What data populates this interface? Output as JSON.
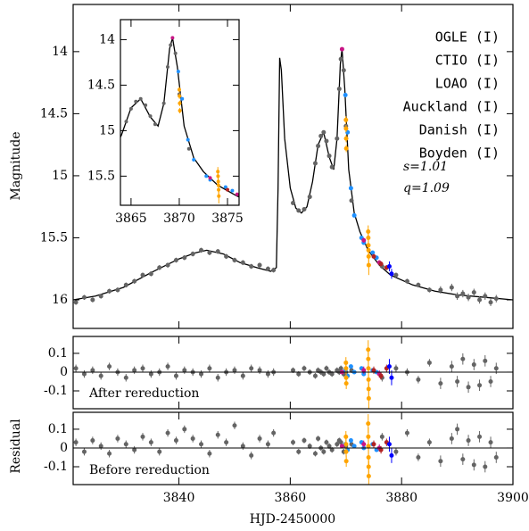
{
  "chart_data": [
    {
      "type": "scatter",
      "ylabel": "Magnitude",
      "xlim": [
        3821,
        3900
      ],
      "ylim": [
        13.62,
        16.23
      ],
      "y_inverted": true,
      "xticks": [
        3840,
        3860,
        3880,
        3900
      ],
      "yticks": [
        14,
        14.5,
        15,
        15.5,
        16
      ],
      "annotations": [
        "s=1.01",
        "q=1.09"
      ],
      "model": {
        "color": "#000000",
        "x": [
          3821,
          3825,
          3830,
          3835,
          3840,
          3843,
          3845,
          3848,
          3851,
          3854,
          3856.5,
          3857.5,
          3857.8,
          3858.1,
          3858.4,
          3859,
          3860,
          3861,
          3862,
          3863,
          3864,
          3865,
          3866,
          3867,
          3867.8,
          3868.4,
          3869,
          3869.3,
          3869.8,
          3870.5,
          3871.5,
          3872.5,
          3874,
          3876,
          3878,
          3882,
          3886,
          3890,
          3895,
          3900
        ],
        "values": [
          16.0,
          15.97,
          15.9,
          15.78,
          15.67,
          15.62,
          15.6,
          15.63,
          15.7,
          15.74,
          15.77,
          15.74,
          15.1,
          14.05,
          14.15,
          14.7,
          15.1,
          15.26,
          15.3,
          15.25,
          15.05,
          14.75,
          14.65,
          14.85,
          14.95,
          14.7,
          14.1,
          13.98,
          14.3,
          14.95,
          15.3,
          15.45,
          15.6,
          15.72,
          15.8,
          15.88,
          15.93,
          15.96,
          15.98,
          16.0
        ]
      },
      "series": [
        {
          "name": "OGLE (I)",
          "color": "#646464",
          "x": [
            3821.5,
            3823,
            3824.5,
            3826,
            3827.5,
            3829,
            3830.5,
            3832,
            3833.5,
            3835,
            3836.5,
            3838,
            3839.5,
            3841,
            3842.5,
            3844,
            3845.5,
            3847,
            3848.5,
            3850,
            3851.5,
            3853,
            3854.5,
            3856,
            3857,
            3860.5,
            3861.5,
            3862.5,
            3863.5,
            3864.5,
            3865,
            3865.5,
            3866,
            3866.5,
            3867,
            3867.5,
            3868.4,
            3868.8,
            3869.1,
            3869.6,
            3870,
            3871,
            3876.5,
            3879,
            3881,
            3883,
            3885,
            3887,
            3889,
            3890,
            3891,
            3892,
            3893,
            3894,
            3895,
            3896,
            3897
          ],
          "values": [
            16.02,
            15.98,
            16.0,
            15.97,
            15.93,
            15.92,
            15.88,
            15.85,
            15.8,
            15.79,
            15.74,
            15.72,
            15.68,
            15.66,
            15.63,
            15.6,
            15.62,
            15.61,
            15.65,
            15.68,
            15.7,
            15.73,
            15.72,
            15.75,
            15.76,
            15.22,
            15.28,
            15.27,
            15.17,
            14.9,
            14.76,
            14.68,
            14.65,
            14.72,
            14.84,
            14.93,
            14.7,
            14.3,
            14.06,
            14.15,
            14.6,
            15.2,
            15.73,
            15.8,
            15.85,
            15.88,
            15.92,
            15.92,
            15.9,
            15.97,
            15.95,
            15.98,
            15.94,
            16.0,
            15.97,
            16.02,
            15.99
          ],
          "errors": [
            0.02,
            0.02,
            0.02,
            0.02,
            0.02,
            0.02,
            0.02,
            0.02,
            0.02,
            0.02,
            0.02,
            0.02,
            0.02,
            0.02,
            0.02,
            0.02,
            0.02,
            0.02,
            0.02,
            0.02,
            0.02,
            0.02,
            0.02,
            0.02,
            0.02,
            0.015,
            0.015,
            0.015,
            0.015,
            0.015,
            0.015,
            0.015,
            0.015,
            0.015,
            0.015,
            0.015,
            0.015,
            0.015,
            0.015,
            0.015,
            0.015,
            0.015,
            0.02,
            0.02,
            0.02,
            0.02,
            0.02,
            0.03,
            0.03,
            0.03,
            0.03,
            0.03,
            0.03,
            0.03,
            0.03,
            0.03,
            0.03
          ]
        },
        {
          "name": "CTIO (I)",
          "color": "#1e90ff",
          "x": [
            3869.9,
            3870.3,
            3870.9,
            3871.5,
            3872.8,
            3873.2,
            3874.8,
            3875.5
          ],
          "values": [
            14.35,
            14.65,
            15.1,
            15.32,
            15.5,
            15.54,
            15.62,
            15.66
          ],
          "errors": [
            0.01,
            0.01,
            0.01,
            0.01,
            0.01,
            0.01,
            0.01,
            0.01
          ]
        },
        {
          "name": "LOAO (I)",
          "color": "#ffa500",
          "x": [
            3870.0,
            3870.02,
            3870.04,
            3870.06,
            3874.0,
            3874.02,
            3874.04,
            3874.06,
            3874.08,
            3874.1
          ],
          "values": [
            14.55,
            14.62,
            14.7,
            14.78,
            15.45,
            15.5,
            15.56,
            15.6,
            15.65,
            15.72
          ],
          "errors": [
            0.03,
            0.03,
            0.03,
            0.03,
            0.05,
            0.05,
            0.05,
            0.06,
            0.06,
            0.08
          ]
        },
        {
          "name": "Auckland (I)",
          "color": "#c71585",
          "x": [
            3869.3,
            3873.2,
            3876
          ],
          "values": [
            13.98,
            15.52,
            15.7
          ],
          "errors": [
            0.01,
            0.02,
            0.02
          ]
        },
        {
          "name": "Danish (I)",
          "color": "#b22222",
          "x": [
            3875,
            3876.3,
            3877.3
          ],
          "values": [
            15.65,
            15.71,
            15.74
          ],
          "errors": [
            0.02,
            0.02,
            0.02
          ]
        },
        {
          "name": "Boyden (I)",
          "color": "#0000ff",
          "x": [
            3877.8,
            3878.2
          ],
          "values": [
            15.73,
            15.79
          ],
          "errors": [
            0.04,
            0.04
          ]
        }
      ]
    },
    {
      "type": "scatter",
      "xlim": [
        3863.9,
        3876.2
      ],
      "ylim": [
        13.78,
        15.82
      ],
      "y_inverted": true,
      "xticks": [
        3865,
        3870,
        3875
      ],
      "yticks": [
        14,
        14.5,
        15,
        15.5
      ]
    },
    {
      "type": "scatter",
      "label": "After rereduction",
      "ylim": [
        -0.195,
        0.19
      ],
      "yticks": [
        0.1,
        0,
        -0.1
      ],
      "series": [
        {
          "values": [
            0.02,
            -0.01,
            0.01,
            -0.02,
            0.03,
            0,
            -0.03,
            0.01,
            0.02,
            -0.01,
            0,
            0.03,
            -0.02,
            0.01,
            0,
            -0.01,
            0.02,
            -0.03,
            0,
            0.01,
            -0.02,
            0.02,
            0.01,
            -0.01,
            0,
            0.01,
            -0.01,
            0.02,
            0,
            -0.02,
            0.01,
            0,
            -0.01,
            0.02,
            0,
            -0.01,
            0.01,
            0,
            0.02,
            -0.01,
            0,
            0.01,
            -0.03,
            0.02,
            0,
            -0.04,
            0.05,
            -0.06,
            0.03,
            -0.05,
            0.07,
            -0.08,
            0.04,
            -0.07,
            0.06,
            -0.05,
            0.02
          ]
        },
        {
          "values": [
            0.01,
            -0.02,
            0.03,
            0,
            0.02,
            -0.01,
            0.01,
            0
          ]
        },
        {
          "values": [
            0.05,
            0.02,
            -0.03,
            -0.06,
            0.12,
            0.07,
            0.02,
            -0.04,
            -0.09,
            -0.14
          ]
        },
        {
          "values": [
            0,
            0.01,
            -0.01
          ]
        },
        {
          "values": [
            0.01,
            -0.02,
            0.02
          ]
        },
        {
          "values": [
            0.03,
            -0.03
          ]
        }
      ]
    },
    {
      "type": "scatter",
      "label": "Before rereduction",
      "ylabel": "Residual",
      "xlabel": "HJD-2450000",
      "ylim": [
        -0.195,
        0.19
      ],
      "yticks": [
        0.1,
        0,
        -0.1
      ],
      "xticks": [
        3840,
        3860,
        3880,
        3900
      ],
      "series": [
        {
          "values": [
            0.03,
            -0.02,
            0.04,
            0.01,
            -0.03,
            0.05,
            0.02,
            -0.01,
            0.06,
            0.03,
            -0.02,
            0.08,
            0.04,
            0.1,
            0.05,
            0.02,
            -0.03,
            0.07,
            0.03,
            0.12,
            0.01,
            -0.04,
            0.05,
            0.02,
            0.08,
            0.03,
            -0.02,
            0.04,
            0.01,
            -0.03,
            0.05,
            0,
            -0.02,
            0.03,
            0.01,
            -0.01,
            0.02,
            0.04,
            0.03,
            -0.02,
            0.01,
            0.02,
            0.06,
            -0.02,
            0.08,
            -0.05,
            0.03,
            -0.07,
            0.05,
            0.1,
            -0.06,
            0.04,
            -0.09,
            0.06,
            -0.1,
            0.03,
            -0.05
          ]
        },
        {
          "values": [
            0.02,
            -0.01,
            0.04,
            0.01,
            0.03,
            0,
            0.02,
            -0.01
          ]
        },
        {
          "values": [
            0.06,
            0.02,
            -0.02,
            -0.07,
            0.13,
            0.06,
            0.01,
            -0.05,
            -0.1,
            -0.15
          ]
        },
        {
          "values": [
            0.01,
            0.02,
            0
          ]
        },
        {
          "values": [
            0.02,
            -0.01,
            0.03
          ]
        },
        {
          "values": [
            0.02,
            -0.04
          ]
        }
      ]
    }
  ]
}
